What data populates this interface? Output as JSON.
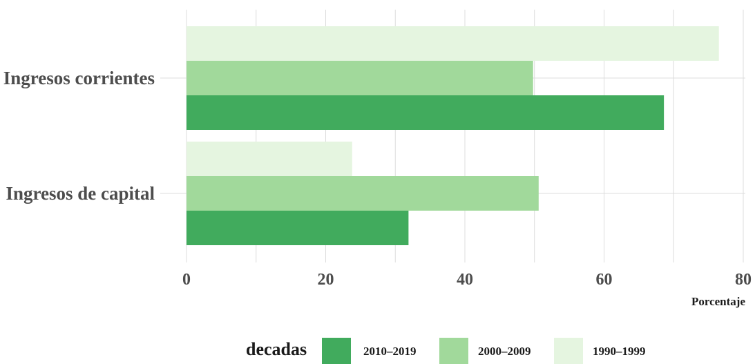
{
  "chart_data": {
    "type": "bar",
    "orientation": "horizontal",
    "categories": [
      "Ingresos corrientes",
      "Ingresos de capital"
    ],
    "series": [
      {
        "name": "1990–1999",
        "color": "#e5f5e0",
        "values": [
          76.5,
          23.8
        ]
      },
      {
        "name": "2000–2009",
        "color": "#a1d99b",
        "values": [
          49.8,
          50.6
        ]
      },
      {
        "name": "2010–2019",
        "color": "#41ab5d",
        "values": [
          68.6,
          31.9
        ]
      }
    ],
    "xlabel": "Porcentaje",
    "ylabel": "",
    "xlim": [
      0,
      80
    ],
    "xticks": [
      0,
      20,
      40,
      60,
      80
    ],
    "grid": true,
    "legend": {
      "title": "decadas",
      "position": "bottom",
      "entries": [
        {
          "name": "2010–2019",
          "color": "#41ab5d"
        },
        {
          "name": "2000–2009",
          "color": "#a1d99b"
        },
        {
          "name": "1990–1999",
          "color": "#e5f5e0"
        }
      ]
    }
  }
}
